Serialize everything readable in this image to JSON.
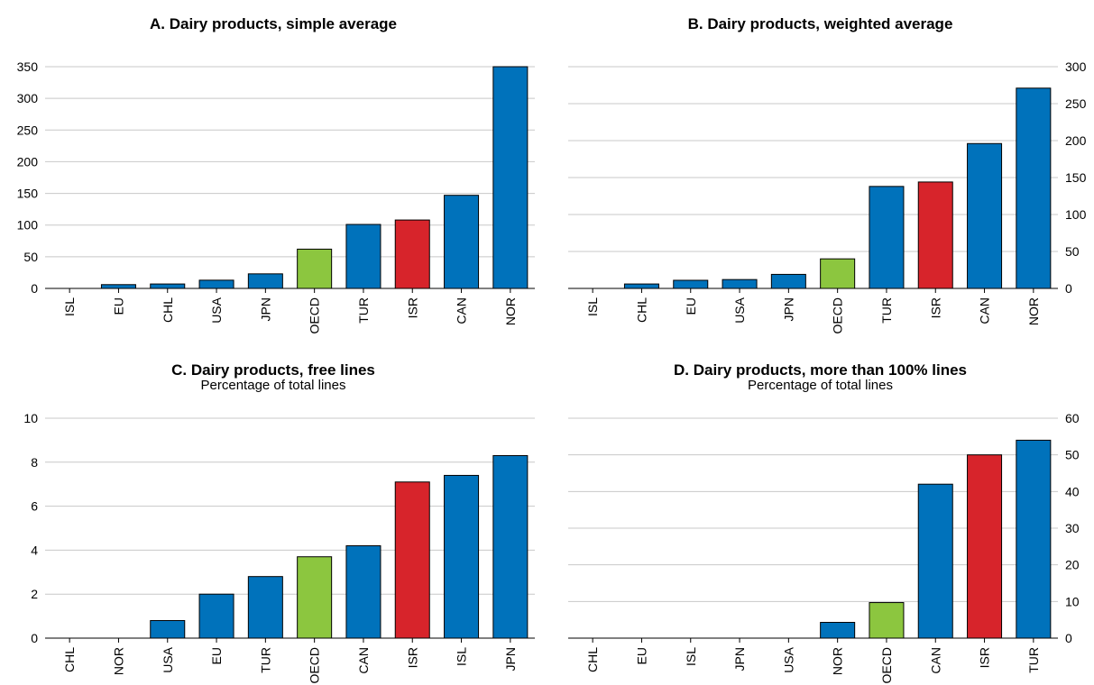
{
  "colors": {
    "default": "#0072BB",
    "oecd": "#8CC63F",
    "highlight": "#D7242B",
    "grid": "#c8c8c8"
  },
  "panels": [
    {
      "title": "A. Dairy products, simple average",
      "subtitle": "",
      "chart_data": {
        "type": "bar",
        "categories": [
          "ISL",
          "EU",
          "CHL",
          "USA",
          "JPN",
          "OECD",
          "TUR",
          "ISR",
          "CAN",
          "NOR"
        ],
        "values": [
          0,
          6,
          7,
          13,
          23,
          62,
          101,
          108,
          147,
          350
        ],
        "ylim": [
          0,
          350
        ],
        "yticks": [
          0,
          50,
          100,
          150,
          200,
          250,
          300,
          350
        ],
        "axis_side": "left",
        "grid": true,
        "highlight": "ISR",
        "oecd": "OECD"
      }
    },
    {
      "title": "B. Dairy products, weighted average",
      "subtitle": "",
      "chart_data": {
        "type": "bar",
        "categories": [
          "ISL",
          "CHL",
          "EU",
          "USA",
          "JPN",
          "OECD",
          "TUR",
          "ISR",
          "CAN",
          "NOR"
        ],
        "values": [
          0,
          6,
          11,
          12,
          19,
          40,
          138,
          144,
          196,
          271
        ],
        "ylim": [
          0,
          300
        ],
        "yticks": [
          0,
          50,
          100,
          150,
          200,
          250,
          300
        ],
        "axis_side": "right",
        "grid": true,
        "highlight": "ISR",
        "oecd": "OECD"
      }
    },
    {
      "title": "C. Dairy products, free lines",
      "subtitle": "Percentage of total lines",
      "chart_data": {
        "type": "bar",
        "categories": [
          "CHL",
          "NOR",
          "USA",
          "EU",
          "TUR",
          "OECD",
          "CAN",
          "ISR",
          "ISL",
          "JPN"
        ],
        "values": [
          0,
          0,
          0.8,
          2.0,
          2.8,
          3.7,
          4.2,
          7.1,
          7.4,
          8.3
        ],
        "ylim": [
          0,
          10
        ],
        "yticks": [
          0,
          2,
          4,
          6,
          8,
          10
        ],
        "axis_side": "left",
        "grid": true,
        "highlight": "ISR",
        "oecd": "OECD"
      }
    },
    {
      "title": "D. Dairy products, more than 100% lines",
      "subtitle": "Percentage of total lines",
      "chart_data": {
        "type": "bar",
        "categories": [
          "CHL",
          "EU",
          "ISL",
          "JPN",
          "USA",
          "NOR",
          "OECD",
          "CAN",
          "ISR",
          "TUR"
        ],
        "values": [
          0,
          0,
          0,
          0,
          0,
          4.3,
          9.7,
          42,
          50,
          54
        ],
        "ylim": [
          0,
          60
        ],
        "yticks": [
          0,
          10,
          20,
          30,
          40,
          50,
          60
        ],
        "axis_side": "right",
        "grid": true,
        "highlight": "ISR",
        "oecd": "OECD"
      }
    }
  ]
}
